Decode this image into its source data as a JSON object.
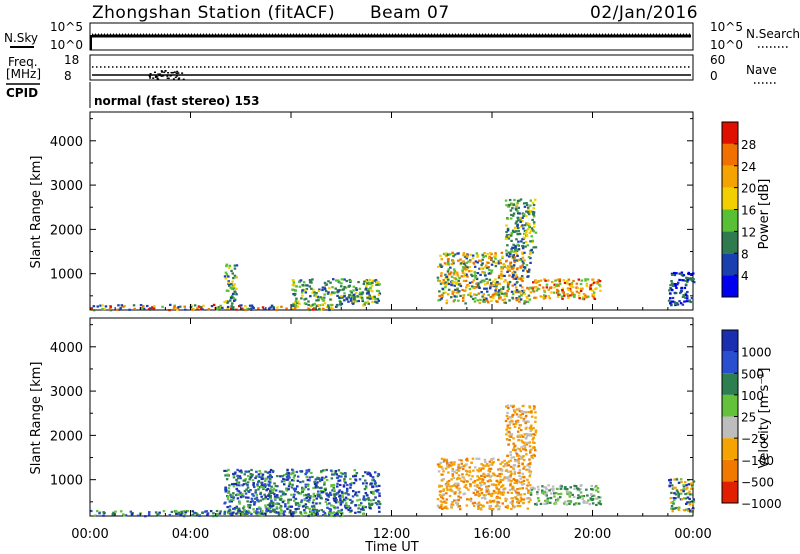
{
  "header": {
    "station": "Zhongshan Station (fitACF)",
    "beam": "Beam 07",
    "date": "02/Jan/2016"
  },
  "strip_panels": {
    "nsky_label": "N.Sky",
    "nsky_ticks": [
      "10^5",
      "10^0"
    ],
    "nsearch_label": "N.Search",
    "nsearch_ticks": [
      "10^5",
      "10^0"
    ],
    "freq_label_line1": "Freq.",
    "freq_label_line2": "[MHz]",
    "freq_ticks": [
      "18",
      "8"
    ],
    "nave_label": "Nave",
    "nave_ticks": [
      "60",
      "0"
    ],
    "cpid_label": "CPID",
    "cpid_text": "normal (fast stereo) 153"
  },
  "colors": {
    "power_scale": [
      "#0000ee",
      "#1a3fb0",
      "#2f7a4e",
      "#57c035",
      "#f2d000",
      "#f5a300",
      "#f07000",
      "#e01000"
    ],
    "velocity_scale": [
      "#1a2fb0",
      "#2a4ed0",
      "#2e7f4f",
      "#63c13a",
      "#bdbdbd",
      "#f5a300",
      "#f07a00",
      "#e02000"
    ]
  },
  "chart_data": [
    {
      "type": "heatmap",
      "title": "Power",
      "xlabel": "Time UT",
      "ylabel": "Slant Range [km]",
      "colorbar_label": "Power [dB]",
      "colorbar_ticks": [
        "28",
        "24",
        "20",
        "16",
        "12",
        "8",
        "4"
      ],
      "x_ticks": [
        "00:00",
        "04:00",
        "08:00",
        "12:00",
        "16:00",
        "20:00",
        "00:00"
      ],
      "y_ticks": [
        "4000",
        "3000",
        "2000",
        "1000"
      ],
      "xlim_hours": [
        0,
        24
      ],
      "ylim_km": [
        180,
        4650
      ],
      "scatter_regions": [
        {
          "t_start": 0.0,
          "t_end": 10.0,
          "r_min": 200,
          "r_max": 320,
          "level": "mixed-low"
        },
        {
          "t_start": 5.3,
          "t_end": 5.8,
          "r_min": 250,
          "r_max": 1250,
          "level": "mixed"
        },
        {
          "t_start": 8.0,
          "t_end": 11.5,
          "r_min": 300,
          "r_max": 900,
          "level": "mixed"
        },
        {
          "t_start": 13.8,
          "t_end": 17.5,
          "r_min": 350,
          "r_max": 1500,
          "level": "mixed-high"
        },
        {
          "t_start": 17.5,
          "t_end": 20.3,
          "r_min": 450,
          "r_max": 900,
          "level": "high"
        },
        {
          "t_start": 16.5,
          "t_end": 17.7,
          "r_min": 1500,
          "r_max": 2700,
          "level": "mixed"
        },
        {
          "t_start": 23.0,
          "t_end": 24.0,
          "r_min": 300,
          "r_max": 1050,
          "level": "low"
        }
      ]
    },
    {
      "type": "heatmap",
      "title": "Velocity",
      "xlabel": "Time UT",
      "ylabel": "Slant Range [km]",
      "colorbar_label": "Velocity [m s⁻¹]",
      "colorbar_ticks": [
        "1000",
        "500",
        "100",
        "25",
        "−25",
        "−100",
        "−500",
        "−1000"
      ],
      "x_ticks": [
        "00:00",
        "04:00",
        "08:00",
        "12:00",
        "16:00",
        "20:00",
        "00:00"
      ],
      "y_ticks": [
        "4000",
        "3000",
        "2000",
        "1000"
      ],
      "xlim_hours": [
        0,
        24
      ],
      "ylim_km": [
        180,
        4650
      ],
      "scatter_regions": [
        {
          "t_start": 0.0,
          "t_end": 10.0,
          "r_min": 200,
          "r_max": 320,
          "level": "positive"
        },
        {
          "t_start": 5.3,
          "t_end": 11.5,
          "r_min": 250,
          "r_max": 1250,
          "level": "positive"
        },
        {
          "t_start": 13.8,
          "t_end": 17.5,
          "r_min": 350,
          "r_max": 1500,
          "level": "negative"
        },
        {
          "t_start": 17.5,
          "t_end": 20.3,
          "r_min": 450,
          "r_max": 900,
          "level": "positive-slow"
        },
        {
          "t_start": 16.5,
          "t_end": 17.7,
          "r_min": 1500,
          "r_max": 2700,
          "level": "negative"
        },
        {
          "t_start": 23.0,
          "t_end": 24.0,
          "r_min": 300,
          "r_max": 1050,
          "level": "mixed"
        }
      ]
    }
  ]
}
